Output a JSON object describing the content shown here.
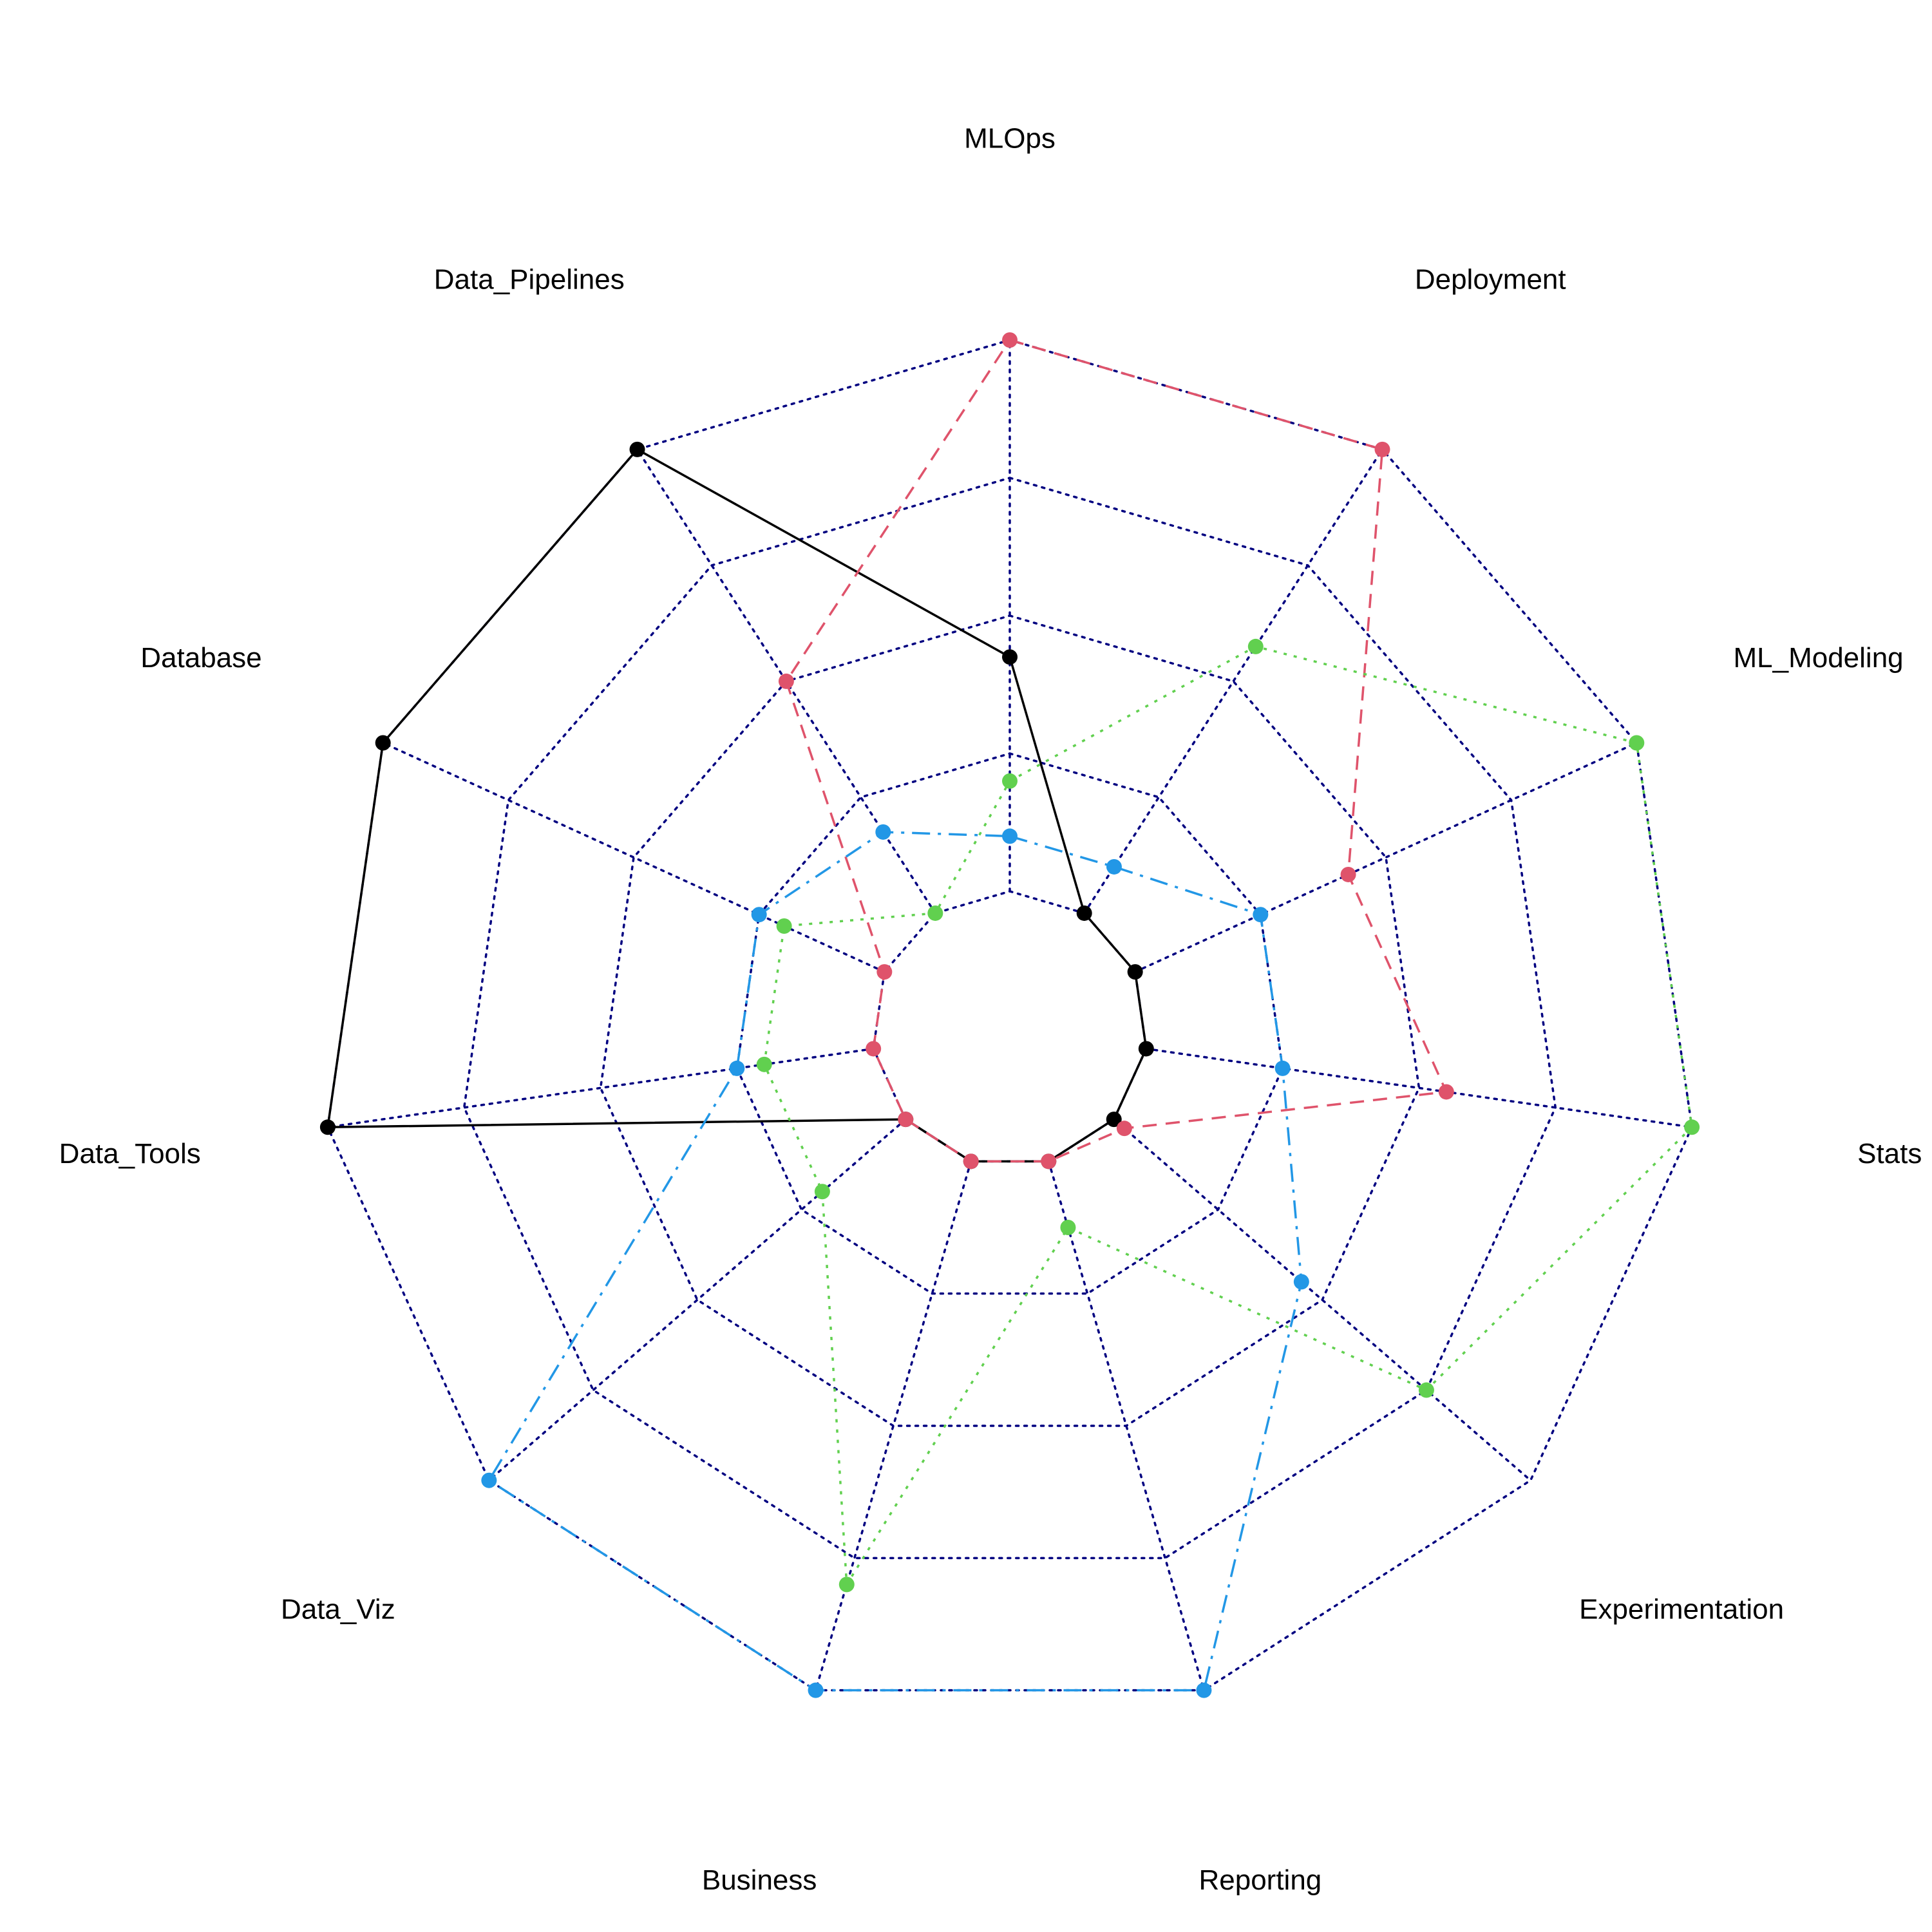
{
  "chart_data": {
    "type": "radar",
    "axes": [
      "MLOps",
      "Deployment",
      "ML_Modeling",
      "Stats",
      "Experimentation",
      "Reporting",
      "Business",
      "Data_Viz",
      "Data_Tools",
      "Database",
      "Data_Pipelines"
    ],
    "rlim": [
      0,
      5
    ],
    "grid_levels": 5,
    "grid_style": "dotted",
    "grid_color": "#000080",
    "series": [
      {
        "color": "#000000",
        "line_style": "solid",
        "values": [
          2.7,
          1.0,
          1.0,
          1.0,
          1.0,
          1.0,
          1.0,
          1.0,
          5.0,
          5.0,
          5.0
        ]
      },
      {
        "color": "#DF536B",
        "line_style": "dashed",
        "values": [
          5.0,
          5.0,
          2.7,
          3.2,
          1.1,
          1.0,
          1.0,
          1.0,
          1.0,
          1.0,
          3.0
        ]
      },
      {
        "color": "#61D04F",
        "line_style": "dotted",
        "values": [
          1.8,
          3.3,
          5.0,
          5.0,
          4.0,
          1.5,
          4.2,
          1.8,
          1.8,
          1.8,
          1.0
        ]
      },
      {
        "color": "#2297E6",
        "line_style": "dashdot",
        "values": [
          1.4,
          1.4,
          2.0,
          2.0,
          2.8,
          5.0,
          5.0,
          5.0,
          2.0,
          2.0,
          1.7
        ]
      }
    ]
  }
}
